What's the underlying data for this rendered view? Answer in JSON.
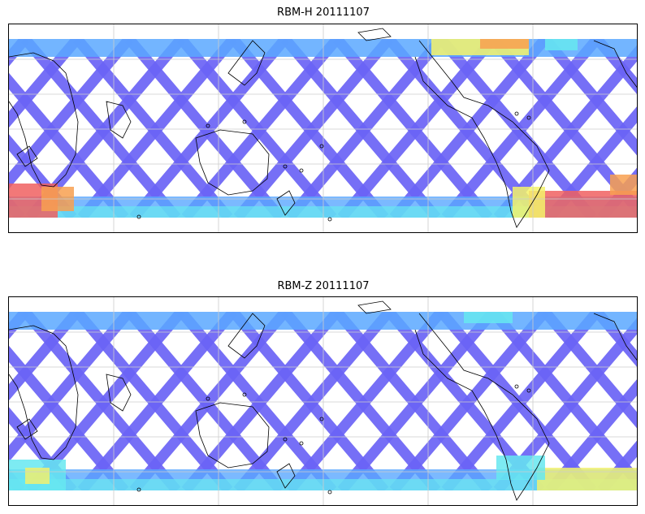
{
  "panels": [
    {
      "title": "RBM-H 20111107",
      "colors": {
        "swath_base": "#6a63f5",
        "swath_edge": "#5aa8ff",
        "cyan": "#66e8f0",
        "yellow": "#f5f36a",
        "orange": "#f8a050",
        "red": "#f06060"
      }
    },
    {
      "title": "RBM-Z 20111107",
      "colors": {
        "swath_base": "#6a63f5",
        "swath_edge": "#5aa8ff",
        "cyan": "#66e8f0",
        "yellow": "#f0f070",
        "orange": "#f5c060",
        "red": "#f08060"
      }
    }
  ],
  "map": {
    "projection": "equirectangular",
    "coastline_color": "#000000",
    "gridline_color": "#cccccc"
  }
}
